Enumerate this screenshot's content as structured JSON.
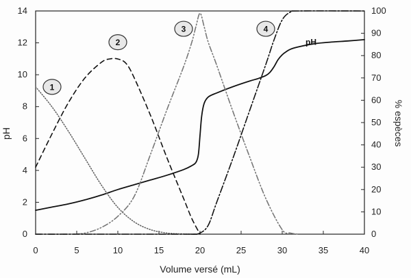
{
  "chart_data": {
    "type": "line",
    "title": "",
    "xlabel": "Volume versé (mL)",
    "ylabel": "pH",
    "y2label": "% espèces",
    "xlim": [
      0,
      40
    ],
    "ylim": [
      0,
      14
    ],
    "y2lim": [
      0,
      100
    ],
    "x_ticks": [
      "0",
      "5",
      "10",
      "15",
      "20",
      "25",
      "30",
      "35",
      "40"
    ],
    "y_ticks": [
      "0",
      "2",
      "4",
      "6",
      "8",
      "10",
      "12",
      "14"
    ],
    "y2_ticks": [
      "0",
      "10",
      "20",
      "30",
      "40",
      "50",
      "60",
      "70",
      "80",
      "90",
      "100"
    ],
    "grid": false,
    "legend": "none",
    "series": [
      {
        "name": "pH",
        "axis": "left",
        "style": "solid",
        "color": "#111111",
        "x": [
          0,
          2,
          4,
          6,
          8,
          10,
          12,
          14,
          16,
          18,
          19,
          19.5,
          19.8,
          20,
          20.2,
          20.5,
          21,
          22,
          24,
          26,
          27,
          28,
          28.5,
          29,
          29.5,
          30,
          30.5,
          31,
          32,
          34,
          36,
          38,
          40
        ],
        "y": [
          1.5,
          1.7,
          1.9,
          2.15,
          2.45,
          2.8,
          3.1,
          3.4,
          3.7,
          4.05,
          4.3,
          4.5,
          5.0,
          6.2,
          7.4,
          8.2,
          8.6,
          8.85,
          9.25,
          9.6,
          9.75,
          9.95,
          10.15,
          10.5,
          10.95,
          11.25,
          11.45,
          11.6,
          11.75,
          11.95,
          12.05,
          12.12,
          12.2
        ],
        "label": "pH"
      },
      {
        "name": "1",
        "axis": "right",
        "style": "dotted",
        "color": "#666666",
        "x": [
          0,
          2,
          4,
          6,
          8,
          10,
          12,
          14,
          16,
          18,
          20
        ],
        "y": [
          66,
          57,
          46,
          34,
          22,
          12,
          5.5,
          2,
          0.5,
          0.1,
          0
        ],
        "label": "1"
      },
      {
        "name": "2",
        "axis": "right",
        "style": "dashed",
        "color": "#111111",
        "x": [
          0,
          2,
          4,
          6,
          8,
          9,
          10,
          11,
          12,
          14,
          16,
          18,
          19,
          20
        ],
        "y": [
          30,
          45,
          59,
          70,
          77,
          78.5,
          78.5,
          76.5,
          70,
          53,
          34,
          16,
          7,
          0
        ],
        "label": "2"
      },
      {
        "name": "3",
        "axis": "right",
        "style": "dash-dot-dot",
        "color": "#777777",
        "x": [
          0,
          4,
          6,
          8,
          10,
          12,
          14,
          16,
          18,
          19,
          19.5,
          20,
          20.5,
          21,
          22,
          24,
          26,
          28,
          30,
          31,
          32
        ],
        "y": [
          0,
          0,
          0.5,
          3,
          8,
          17,
          36,
          56,
          75,
          86,
          93,
          99,
          93,
          86,
          76,
          55,
          35,
          16,
          2,
          0.5,
          0
        ],
        "label": "3"
      },
      {
        "name": "4",
        "axis": "right",
        "style": "dash-dot",
        "color": "#111111",
        "x": [
          0,
          18,
          19,
          20,
          21,
          22,
          24,
          26,
          28,
          29,
          30,
          31,
          32,
          40
        ],
        "y": [
          0,
          0,
          0,
          0.5,
          4,
          14,
          34,
          55,
          76,
          87,
          96,
          99.5,
          100,
          100
        ],
        "label": "4"
      }
    ],
    "annotations": [
      {
        "text": "1",
        "x": 2,
        "y2": 66
      },
      {
        "text": "2",
        "x": 10,
        "y2": 86
      },
      {
        "text": "3",
        "x": 18,
        "y2": 92
      },
      {
        "text": "4",
        "x": 28,
        "y2": 92
      },
      {
        "text": "pH",
        "x": 33.5,
        "y": 12.05
      }
    ]
  }
}
